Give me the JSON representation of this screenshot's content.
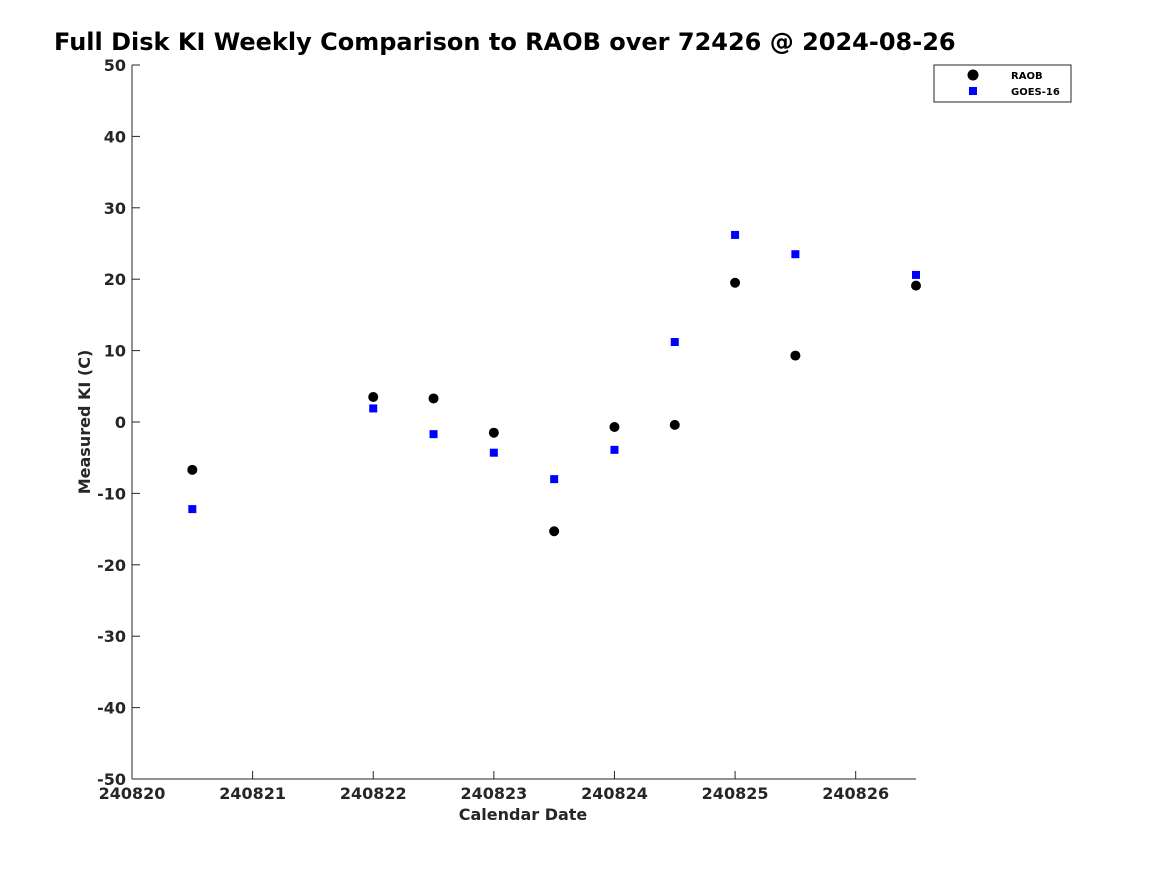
{
  "chart_data": {
    "type": "scatter",
    "title": "Full Disk KI Weekly Comparison to RAOB over 72426 @ 2024-08-26",
    "xlabel": "Calendar Date",
    "ylabel": "Measured KI (C)",
    "xlim": [
      "240820",
      "240826.5"
    ],
    "ylim": [
      -50,
      50
    ],
    "x_ticks": [
      "240820",
      "240821",
      "240822",
      "240823",
      "240824",
      "240825",
      "240826"
    ],
    "y_ticks": [
      50,
      40,
      30,
      20,
      10,
      0,
      -10,
      -20,
      -30,
      -40,
      -50
    ],
    "grid": false,
    "legend_position": "top-right",
    "series": [
      {
        "name": "RAOB",
        "marker": "circle",
        "color": "#000000",
        "points": [
          {
            "x": "240820.5",
            "y": -6.7
          },
          {
            "x": "240822.0",
            "y": 3.5
          },
          {
            "x": "240822.5",
            "y": 3.3
          },
          {
            "x": "240823.0",
            "y": -1.5
          },
          {
            "x": "240823.5",
            "y": -15.3
          },
          {
            "x": "240824.0",
            "y": -0.7
          },
          {
            "x": "240824.5",
            "y": -0.4
          },
          {
            "x": "240825.0",
            "y": 19.5
          },
          {
            "x": "240825.5",
            "y": 9.3
          },
          {
            "x": "240826.5",
            "y": 19.1
          }
        ]
      },
      {
        "name": "GOES-16",
        "marker": "square",
        "color": "#0000ff",
        "points": [
          {
            "x": "240820.5",
            "y": -12.2
          },
          {
            "x": "240822.0",
            "y": 1.9
          },
          {
            "x": "240822.5",
            "y": -1.7
          },
          {
            "x": "240823.0",
            "y": -4.3
          },
          {
            "x": "240823.5",
            "y": -8.0
          },
          {
            "x": "240824.0",
            "y": -3.9
          },
          {
            "x": "240824.5",
            "y": 11.2
          },
          {
            "x": "240825.0",
            "y": 26.2
          },
          {
            "x": "240825.5",
            "y": 23.5
          },
          {
            "x": "240826.5",
            "y": 20.6
          }
        ]
      }
    ]
  }
}
